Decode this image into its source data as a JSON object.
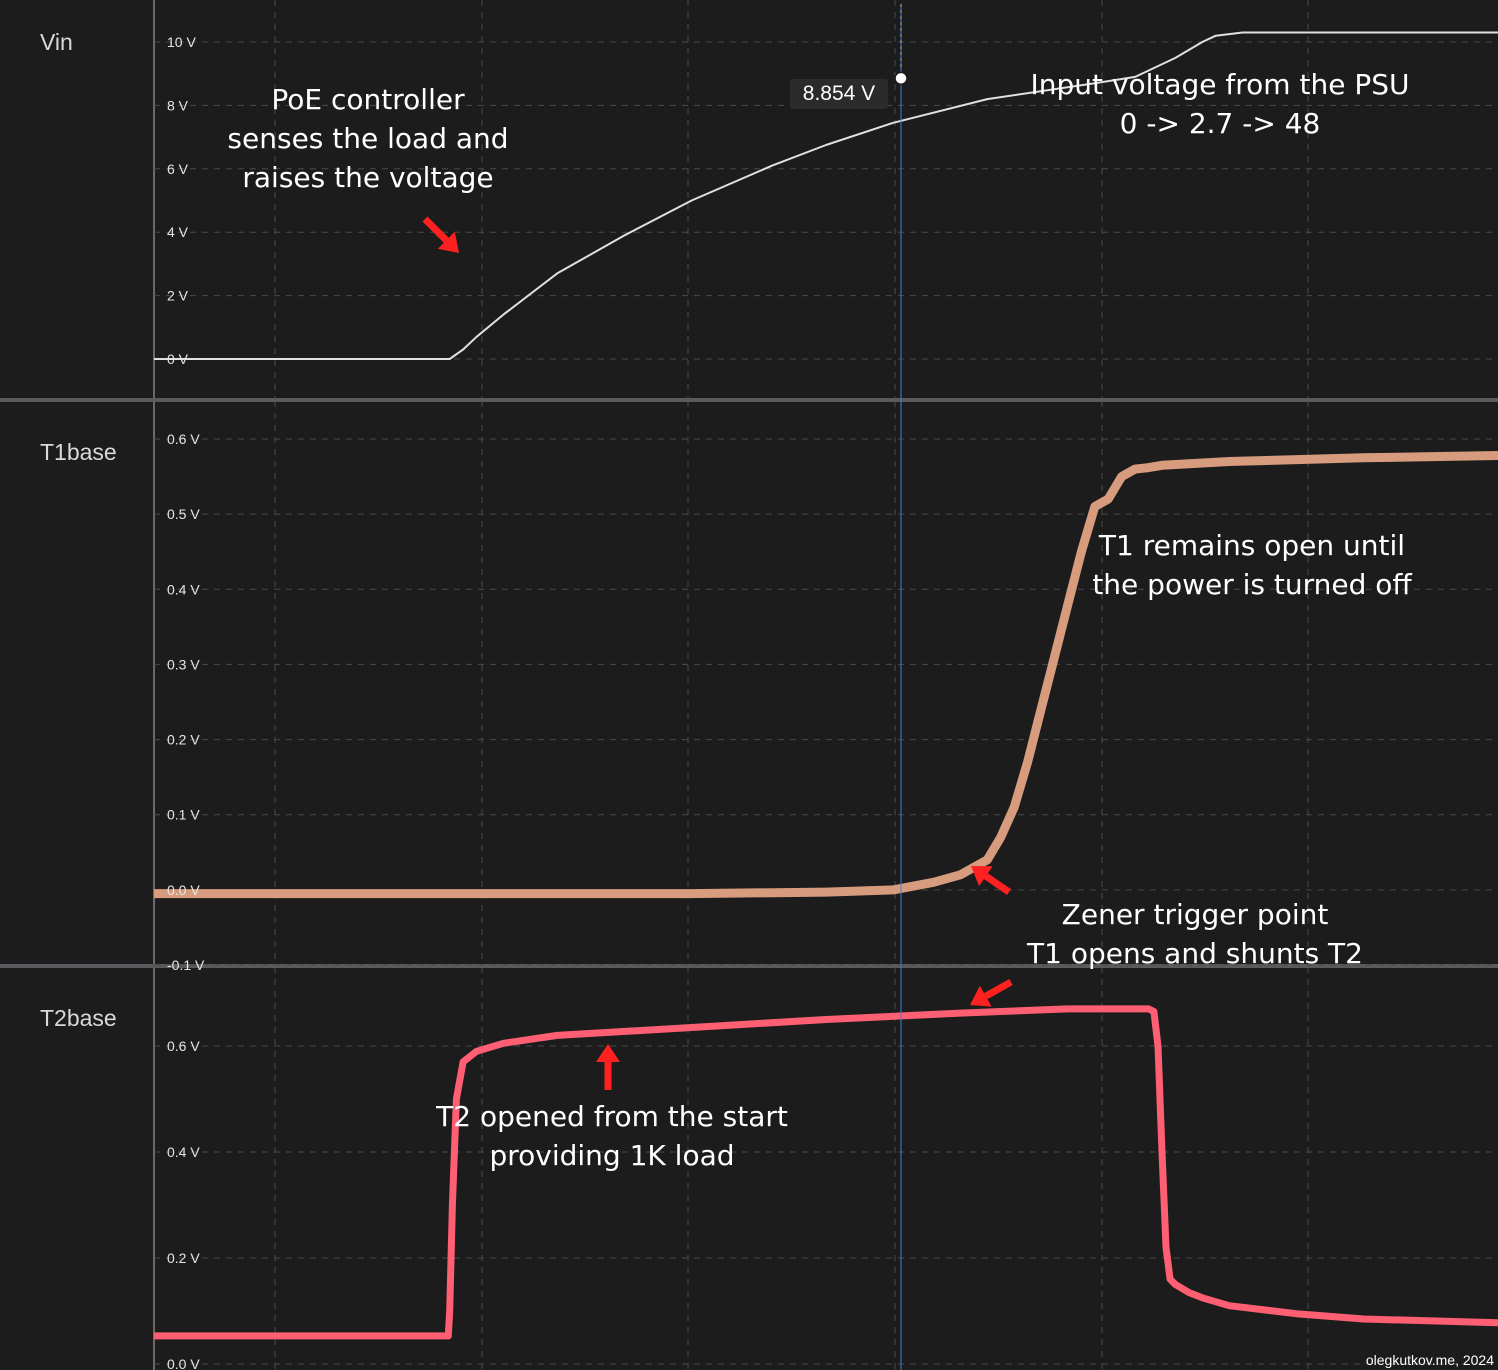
{
  "chart_data": [
    {
      "type": "line",
      "lane": "Vin",
      "title": "",
      "ylabel": "Vin",
      "unit": "V",
      "yticks": [
        "10 V",
        "8 V",
        "6 V",
        "4 V",
        "2 V",
        "0 V"
      ],
      "ylim": [
        -0.2,
        11.3
      ],
      "color": "#e0e0e0",
      "x": [
        0,
        22,
        23,
        24,
        26,
        28,
        30,
        35,
        40,
        46,
        50,
        55,
        62,
        70,
        73,
        76,
        78,
        79,
        81,
        82,
        100
      ],
      "values": [
        0,
        0,
        0.3,
        0.7,
        1.4,
        2.05,
        2.7,
        3.9,
        5.0,
        6.1,
        6.75,
        7.45,
        8.2,
        8.7,
        8.9,
        9.5,
        10.0,
        10.2,
        10.3,
        10.3,
        10.3
      ],
      "cursor_value": "8.854 V"
    },
    {
      "type": "line",
      "lane": "T1base",
      "title": "",
      "ylabel": "T1base",
      "unit": "V",
      "yticks": [
        "0.6 V",
        "0.5 V",
        "0.4 V",
        "0.3 V",
        "0.2 V",
        "0.1 V",
        "0.0 V",
        "-0.1 V"
      ],
      "ylim": [
        -0.1,
        0.65
      ],
      "color": "#d79b7e",
      "x": [
        0,
        10,
        20,
        30,
        40,
        50,
        55,
        58,
        60,
        62,
        63,
        64,
        65,
        66,
        67,
        68,
        69,
        70,
        71,
        72,
        73,
        74,
        75,
        80,
        90,
        100
      ],
      "values": [
        -0.005,
        -0.005,
        -0.005,
        -0.005,
        -0.005,
        -0.003,
        0.0,
        0.01,
        0.02,
        0.04,
        0.07,
        0.11,
        0.17,
        0.24,
        0.31,
        0.38,
        0.45,
        0.51,
        0.52,
        0.55,
        0.56,
        0.562,
        0.565,
        0.57,
        0.575,
        0.578
      ]
    },
    {
      "type": "line",
      "lane": "T2base",
      "title": "",
      "ylabel": "T2base",
      "unit": "V",
      "yticks": [
        "0.6 V",
        "0.4 V",
        "0.2 V",
        "0.0 V"
      ],
      "ylim": [
        -0.01,
        0.7
      ],
      "color": "#ff5f73",
      "x": [
        0,
        21.9,
        22,
        22.2,
        22.5,
        23,
        24,
        26,
        30,
        40,
        50,
        60,
        68,
        74,
        74.4,
        74.7,
        75,
        75.3,
        75.6,
        76,
        77,
        78,
        80,
        85,
        90,
        100
      ],
      "values": [
        0.053,
        0.053,
        0.1,
        0.3,
        0.5,
        0.57,
        0.59,
        0.605,
        0.62,
        0.635,
        0.65,
        0.662,
        0.67,
        0.67,
        0.665,
        0.6,
        0.4,
        0.22,
        0.16,
        0.15,
        0.135,
        0.125,
        0.11,
        0.095,
        0.085,
        0.078
      ]
    }
  ],
  "lanes": {
    "vin": "Vin",
    "t1": "T1base",
    "t2": "T2base"
  },
  "cursor_value": "8.854 V",
  "annotations": {
    "poe": "PoE controller\nsenses the load and\nraises the voltage",
    "psu": "Input voltage from the PSU\n0 -> 2.7 -> 48",
    "t1_open": "T1 remains open until\nthe power is turned off",
    "zener": "Zener trigger point\nT1 opens and shunts T2",
    "t2_open": "T2 opened from the start\nproviding 1K load"
  },
  "footer": "olegkutkov.me, 2024",
  "colors": {
    "background": "#1c1c1c",
    "grid": "#4a4a4a",
    "separator": "#5a5a5e",
    "cursor": "#3d7fd6",
    "arrow": "#ff2020",
    "vin": "#e0e0e0",
    "t1": "#d79b7e",
    "t2": "#ff5f73"
  }
}
